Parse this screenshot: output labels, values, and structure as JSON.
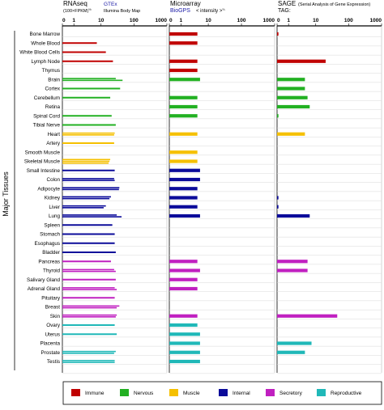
{
  "headers": {
    "rnaseq": {
      "title": "RNAseq",
      "sub": "(100×FPKM)",
      "sub_sup": "½",
      "source1": "GTEx",
      "source2": "Illumina Body Map"
    },
    "microarray": {
      "title": "Microarray",
      "source": "BioGPS",
      "sub": "< intensity >",
      "sub_sup": "⅔"
    },
    "sage": {
      "title": "SAGE",
      "note": "(Serial Analysis of Gene Expression)",
      "sub": "TAG:"
    }
  },
  "chart_data": {
    "type": "bar",
    "axis_ticks": [
      "0",
      "1",
      "10",
      "100",
      "1000"
    ],
    "ylabel": "Major Tissues",
    "panels": [
      "RNAseq",
      "Microarray",
      "SAGE"
    ],
    "colors": {
      "Immune": "#c00000",
      "Nervous": "#22b022",
      "Muscle": "#f5c000",
      "Internal": "#0b0b9a",
      "Secretory": "#c020c0",
      "Reproductive": "#20b8b8"
    },
    "tissues": [
      {
        "name": "Bone Marrow",
        "group": "Immune",
        "rna": [],
        "micro": [
          4
        ],
        "sage": [
          0.12
        ]
      },
      {
        "name": "Whole Blood",
        "group": "Immune",
        "rna": [
          7
        ],
        "micro": [
          4
        ],
        "sage": []
      },
      {
        "name": "White Blood Cells",
        "group": "Immune",
        "rna": [
          14
        ],
        "micro": [],
        "sage": []
      },
      {
        "name": "Lymph Node",
        "group": "Immune",
        "rna": [
          23
        ],
        "micro": [
          4
        ],
        "sage": [
          20
        ]
      },
      {
        "name": "Thymus",
        "group": "Immune",
        "rna": [],
        "micro": [
          4
        ],
        "sage": []
      },
      {
        "name": "Brain",
        "group": "Nervous",
        "rna": [
          28,
          45
        ],
        "micro": [
          5
        ],
        "sage": [
          4
        ]
      },
      {
        "name": "Cortex",
        "group": "Nervous",
        "rna": [
          38
        ],
        "micro": [],
        "sage": [
          4
        ]
      },
      {
        "name": "Cerebellum",
        "group": "Nervous",
        "rna": [
          19
        ],
        "micro": [
          4
        ],
        "sage": [
          5
        ]
      },
      {
        "name": "Retina",
        "group": "Nervous",
        "rna": [],
        "micro": [
          4
        ],
        "sage": [
          6
        ]
      },
      {
        "name": "Spinal Cord",
        "group": "Nervous",
        "rna": [
          21
        ],
        "micro": [
          4
        ],
        "sage": [
          0.12
        ]
      },
      {
        "name": "Tibial Nerve",
        "group": "Nervous",
        "rna": [
          28
        ],
        "micro": [],
        "sage": []
      },
      {
        "name": "Heart",
        "group": "Muscle",
        "rna": [
          26,
          25
        ],
        "micro": [
          4
        ],
        "sage": [
          4
        ]
      },
      {
        "name": "Artery",
        "group": "Muscle",
        "rna": [
          25
        ],
        "micro": [],
        "sage": []
      },
      {
        "name": "Smooth Muscle",
        "group": "Muscle",
        "rna": [],
        "micro": [
          4
        ],
        "sage": []
      },
      {
        "name": "Skeletal Muscle",
        "group": "Muscle",
        "rna": [
          19,
          18,
          17
        ],
        "micro": [
          4
        ],
        "sage": []
      },
      {
        "name": "Small Intestine",
        "group": "Internal",
        "rna": [
          26
        ],
        "micro": [
          5
        ],
        "sage": []
      },
      {
        "name": "Colon",
        "group": "Internal",
        "rna": [
          25,
          26
        ],
        "micro": [
          5
        ],
        "sage": []
      },
      {
        "name": "Adipocyte",
        "group": "Internal",
        "rna": [
          36,
          35
        ],
        "micro": [
          4
        ],
        "sage": []
      },
      {
        "name": "Kidney",
        "group": "Internal",
        "rna": [
          20,
          18
        ],
        "micro": [
          4
        ],
        "sage": [
          0.12
        ]
      },
      {
        "name": "Liver",
        "group": "Internal",
        "rna": [
          14,
          12
        ],
        "micro": [
          4
        ],
        "sage": [
          0.12
        ]
      },
      {
        "name": "Lung",
        "group": "Internal",
        "rna": [
          30,
          42
        ],
        "micro": [
          5
        ],
        "sage": [
          6
        ]
      },
      {
        "name": "Spleen",
        "group": "Internal",
        "rna": [
          22
        ],
        "micro": [],
        "sage": []
      },
      {
        "name": "Stomach",
        "group": "Internal",
        "rna": [
          26
        ],
        "micro": [],
        "sage": []
      },
      {
        "name": "Esophagus",
        "group": "Internal",
        "rna": [
          26
        ],
        "micro": [],
        "sage": []
      },
      {
        "name": "Bladder",
        "group": "Internal",
        "rna": [
          28
        ],
        "micro": [],
        "sage": []
      },
      {
        "name": "Pancreas",
        "group": "Secretory",
        "rna": [
          20
        ],
        "micro": [
          4
        ],
        "sage": [
          5
        ]
      },
      {
        "name": "Thyroid",
        "group": "Secretory",
        "rna": [
          25,
          28
        ],
        "micro": [
          5
        ],
        "sage": [
          5
        ]
      },
      {
        "name": "Salivary Gland",
        "group": "Secretory",
        "rna": [
          28
        ],
        "micro": [
          4
        ],
        "sage": []
      },
      {
        "name": "Adrenal Gland",
        "group": "Secretory",
        "rna": [
          26,
          30
        ],
        "micro": [
          4
        ],
        "sage": []
      },
      {
        "name": "Pituitary",
        "group": "Secretory",
        "rna": [
          26
        ],
        "micro": [],
        "sage": []
      },
      {
        "name": "Breast",
        "group": "Secretory",
        "rna": [
          36,
          30
        ],
        "micro": [],
        "sage": []
      },
      {
        "name": "Skin",
        "group": "Secretory",
        "rna": [
          30,
          28
        ],
        "micro": [
          4
        ],
        "sage": [
          45
        ]
      },
      {
        "name": "Ovary",
        "group": "Reproductive",
        "rna": [
          26
        ],
        "micro": [
          4
        ],
        "sage": []
      },
      {
        "name": "Uterus",
        "group": "Reproductive",
        "rna": [
          30
        ],
        "micro": [
          5
        ],
        "sage": []
      },
      {
        "name": "Placenta",
        "group": "Reproductive",
        "rna": [],
        "micro": [
          5
        ],
        "sage": [
          7
        ]
      },
      {
        "name": "Prostate",
        "group": "Reproductive",
        "rna": [
          28,
          25
        ],
        "micro": [
          5
        ],
        "sage": [
          4
        ]
      },
      {
        "name": "Testis",
        "group": "Reproductive",
        "rna": [
          26,
          26
        ],
        "micro": [
          5
        ],
        "sage": []
      }
    ],
    "legend": [
      "Immune",
      "Nervous",
      "Muscle",
      "Internal",
      "Secretory",
      "Reproductive"
    ]
  }
}
